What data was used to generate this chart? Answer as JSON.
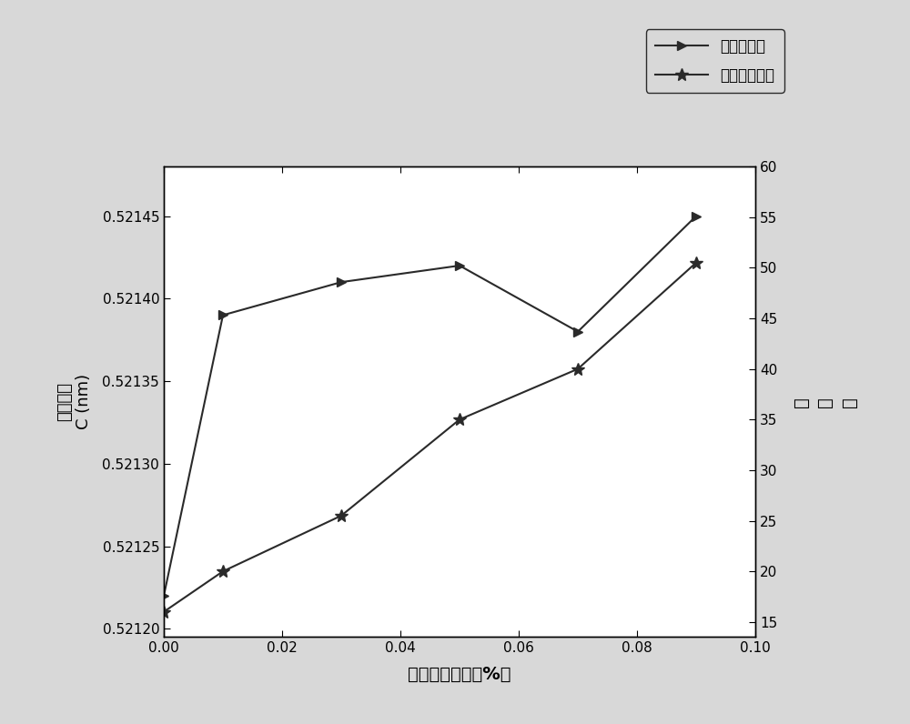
{
  "x": [
    0.0,
    0.01,
    0.03,
    0.05,
    0.07,
    0.09
  ],
  "lattice_c": [
    0.52122,
    0.52139,
    0.52141,
    0.52142,
    0.52138,
    0.52145
  ],
  "fwhm": [
    16.0,
    20.0,
    25.5,
    35.0,
    40.0,
    50.5
  ],
  "xlim": [
    0.0,
    0.1
  ],
  "ylim_left": [
    0.521195,
    0.52148
  ],
  "ylim_right": [
    13.5,
    60
  ],
  "xticks": [
    0.0,
    0.02,
    0.04,
    0.06,
    0.08,
    0.1
  ],
  "yticks_left": [
    0.5212,
    0.52125,
    0.5213,
    0.52135,
    0.5214,
    0.52145
  ],
  "yticks_right": [
    15,
    20,
    25,
    30,
    35,
    40,
    45,
    50,
    55,
    60
  ],
  "xlabel": "钒离子掺入量（%）",
  "ylabel_left_line1": "晶格常数",
  "ylabel_left_line2": "C (nm)",
  "ylabel_right": "半\n峰\n宽",
  "legend_label1": "对应半峰宽",
  "legend_label2": "对应晶格常数",
  "line_color": "#2a2a2a",
  "bg_color": "#d8d8d8",
  "plot_bg": "#ffffff"
}
